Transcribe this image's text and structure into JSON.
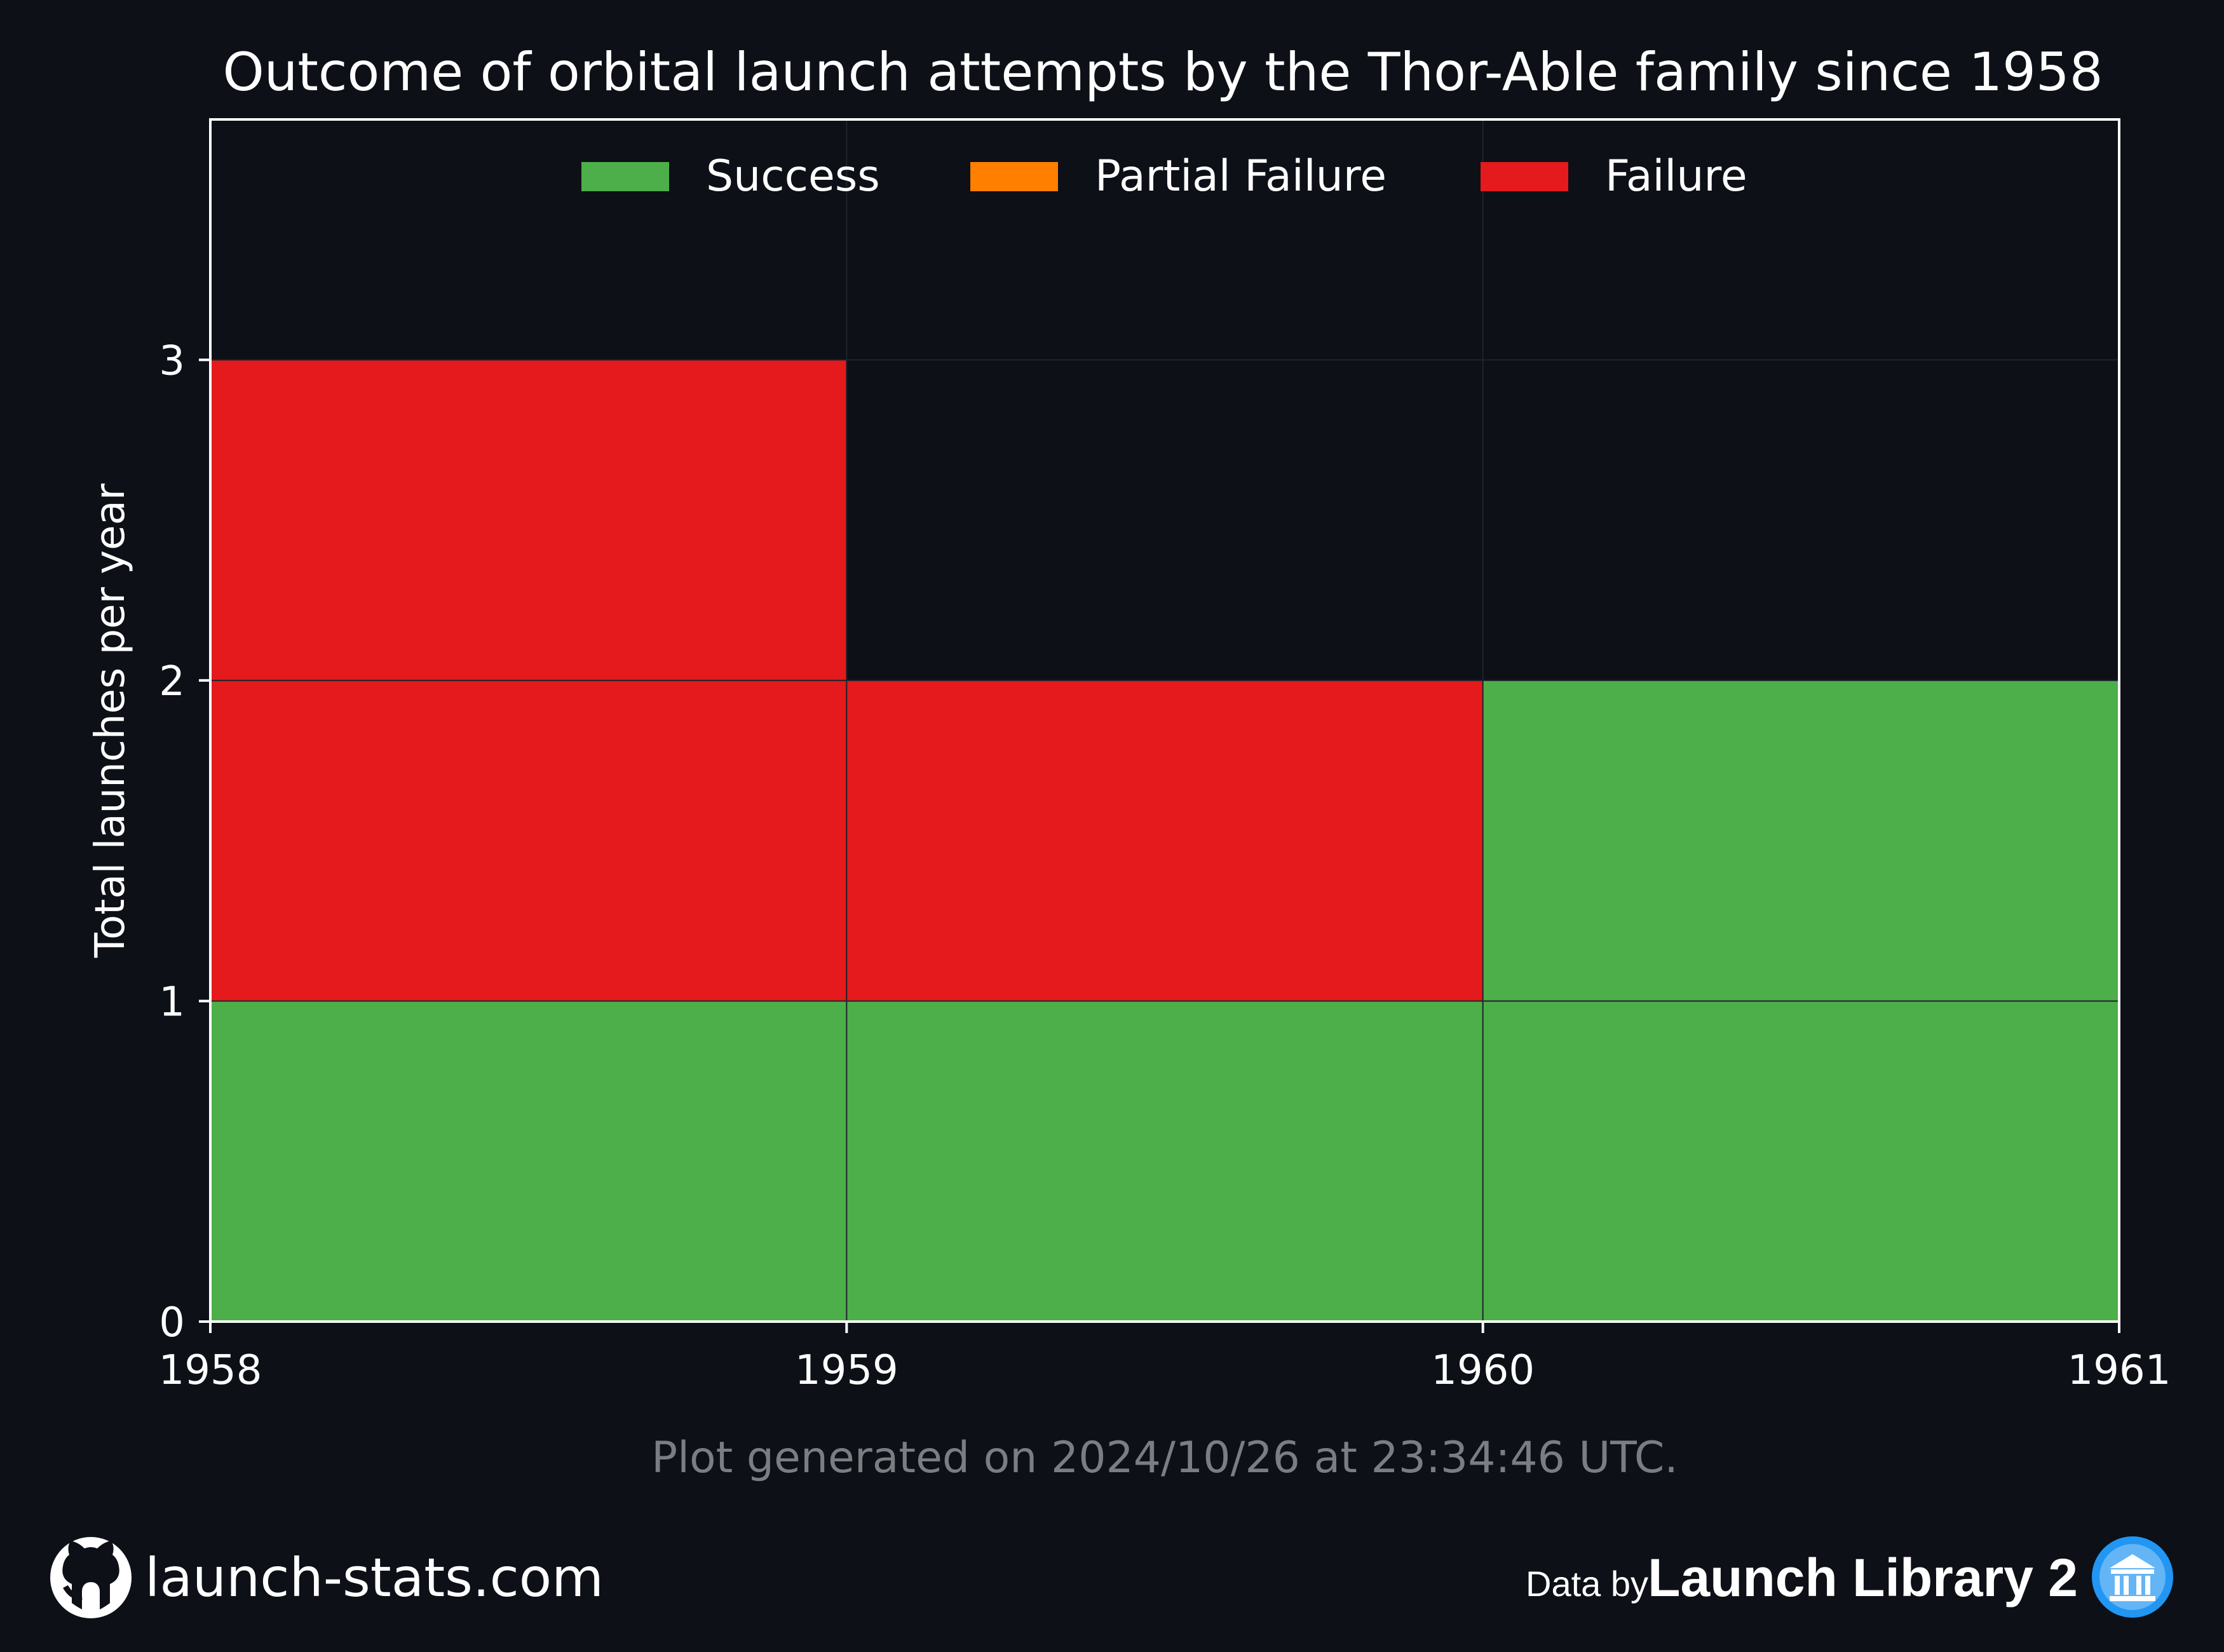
{
  "chart_data": {
    "type": "area",
    "title": "Outcome of orbital launch attempts by the Thor-Able family since 1958",
    "xlabel": "",
    "ylabel": "Total launches per year",
    "x": [
      1958,
      1959,
      1960,
      1961
    ],
    "xlim": [
      1958,
      1961
    ],
    "ylim": [
      0,
      3.75
    ],
    "x_ticks": [
      "1958",
      "1959",
      "1960",
      "1961"
    ],
    "y_ticks": [
      "0",
      "1",
      "2",
      "3"
    ],
    "stacked": true,
    "step": "post",
    "grid": true,
    "legend_position": "top-center",
    "series": [
      {
        "name": "Success",
        "color": "#4daf4a",
        "values": [
          1,
          1,
          2,
          2
        ]
      },
      {
        "name": "Partial Failure",
        "color": "#ff7f00",
        "values": [
          0,
          0,
          0,
          0
        ]
      },
      {
        "name": "Failure",
        "color": "#e41a1c",
        "values": [
          2,
          1,
          0,
          0
        ]
      }
    ]
  },
  "footer": {
    "generated_note": "Plot generated on 2024/10/26 at 23:34:46 UTC.",
    "site": "launch-stats.com",
    "data_by_prefix": "Data by",
    "data_source": "Launch Library 2",
    "github_icon": "github-icon",
    "source_icon": "launch-library-icon"
  },
  "colors": {
    "background": "#0d1017",
    "axes": "#ffffff",
    "grid": "#1f232b",
    "muted_text": "#7a7d82"
  }
}
